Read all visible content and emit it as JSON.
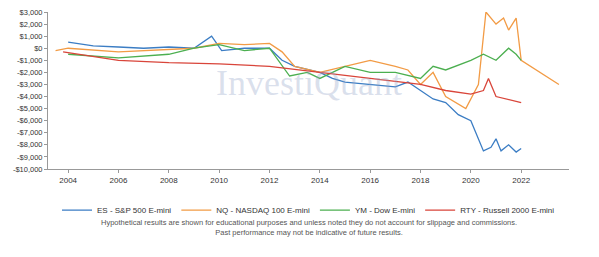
{
  "chart_data": {
    "type": "line",
    "annotations": [
      "InvestiQuant",
      "Hypothetical results are shown for educational purposes and unless noted they do not account for slippage and commissions.",
      "Past performance may not be indicative of future results."
    ],
    "xlim": [
      2003.2,
      2023.9
    ],
    "xticks": [
      2004,
      2006,
      2008,
      2010,
      2012,
      2014,
      2016,
      2018,
      2020,
      2022
    ],
    "ylim": [
      -10000,
      3000
    ],
    "yticks": [
      {
        "value": 3000,
        "label": "$3,000"
      },
      {
        "value": 2000,
        "label": "$2,000"
      },
      {
        "value": 1000,
        "label": "$1,000"
      },
      {
        "value": 0,
        "label": "$0"
      },
      {
        "value": -1000,
        "label": "-$1,000"
      },
      {
        "value": -2000,
        "label": "-$2,000"
      },
      {
        "value": -3000,
        "label": "-$3,000"
      },
      {
        "value": -4000,
        "label": "-$4,000"
      },
      {
        "value": -5000,
        "label": "-$5,000"
      },
      {
        "value": -6000,
        "label": "-$6,000"
      },
      {
        "value": -7000,
        "label": "-$7,000"
      },
      {
        "value": -8000,
        "label": "-$8,000"
      },
      {
        "value": -9000,
        "label": "-$9,000"
      },
      {
        "value": -10000,
        "label": "-$10,000"
      }
    ],
    "grid": false,
    "legend": "bottom",
    "series": [
      {
        "name": "ES - S&P 500 E-mini",
        "color": "#3b7dc4",
        "x": [
          2004.0,
          2005.0,
          2006.0,
          2007.0,
          2008.0,
          2009.0,
          2009.7,
          2010.1,
          2011.0,
          2012.0,
          2012.5,
          2013.0,
          2014.0,
          2014.5,
          2015.0,
          2016.0,
          2017.0,
          2017.5,
          2018.0,
          2018.5,
          2019.0,
          2019.5,
          2020.0,
          2020.5,
          2020.8,
          2021.0,
          2021.2,
          2021.5,
          2021.8,
          2022.0
        ],
        "values": [
          500,
          200,
          100,
          0,
          100,
          0,
          1000,
          -200,
          0,
          0,
          -1000,
          -1500,
          -2000,
          -2500,
          -2800,
          -3000,
          -3200,
          -2800,
          -3500,
          -4200,
          -4500,
          -5500,
          -6000,
          -8500,
          -8200,
          -7500,
          -8500,
          -8000,
          -8600,
          -8300
        ]
      },
      {
        "name": "NQ - NASDAQ 100 E-mini",
        "color": "#f29b45",
        "x": [
          2003.5,
          2004.0,
          2006.0,
          2008.0,
          2009.0,
          2010.0,
          2011.0,
          2012.0,
          2012.5,
          2013.0,
          2014.0,
          2015.0,
          2016.0,
          2017.0,
          2017.5,
          2018.0,
          2018.5,
          2019.0,
          2019.8,
          2020.3,
          2020.6,
          2021.0,
          2021.3,
          2021.5,
          2021.8,
          2022.0,
          2023.5
        ],
        "values": [
          -200,
          0,
          -300,
          -100,
          0,
          400,
          300,
          400,
          -300,
          -1500,
          -2000,
          -1500,
          -1000,
          -1500,
          -1800,
          -3000,
          -2000,
          -4000,
          -5000,
          -3000,
          3000,
          2000,
          2500,
          1500,
          2500,
          -1000,
          -3000
        ]
      },
      {
        "name": "YM - Dow E-mini",
        "color": "#4caf50",
        "x": [
          2004.0,
          2006.0,
          2008.0,
          2009.0,
          2010.0,
          2011.0,
          2012.0,
          2012.8,
          2013.5,
          2014.0,
          2015.0,
          2016.0,
          2017.0,
          2018.0,
          2018.5,
          2019.0,
          2020.0,
          2020.5,
          2021.0,
          2021.5,
          2021.8,
          2022.0
        ],
        "values": [
          -500,
          -800,
          -500,
          0,
          300,
          -200,
          0,
          -2300,
          -2000,
          -2500,
          -1500,
          -2000,
          -2000,
          -2500,
          -1500,
          -1800,
          -1000,
          -500,
          -1000,
          0,
          -500,
          -1000
        ]
      },
      {
        "name": "RTY - Russell 2000 E-mini",
        "color": "#d9453a",
        "x": [
          2003.8,
          2006.0,
          2008.0,
          2010.0,
          2012.0,
          2014.0,
          2016.0,
          2018.0,
          2019.0,
          2020.0,
          2020.5,
          2020.7,
          2021.0,
          2022.0
        ],
        "values": [
          -300,
          -1000,
          -1200,
          -1300,
          -1500,
          -2000,
          -2500,
          -3000,
          -3500,
          -3800,
          -3500,
          -2500,
          -4000,
          -4500
        ]
      }
    ]
  }
}
